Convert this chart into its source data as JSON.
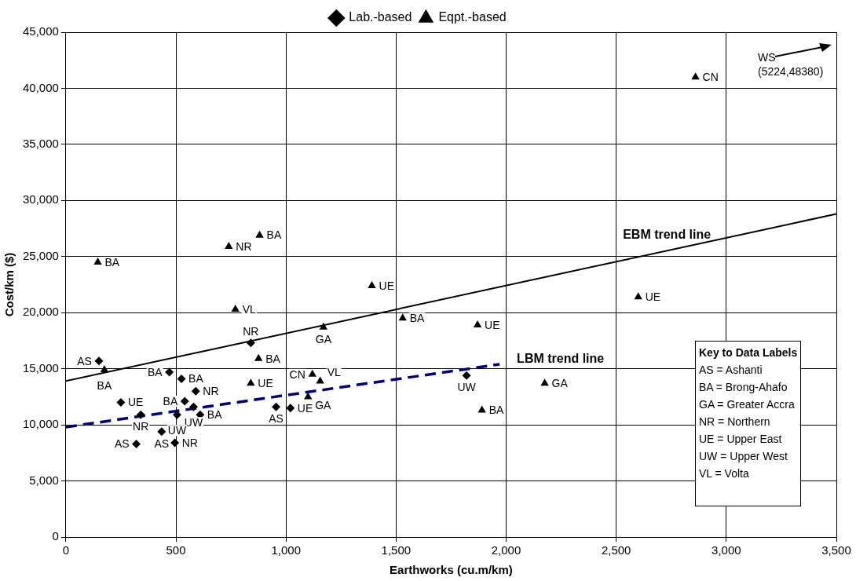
{
  "chart_data": {
    "type": "scatter",
    "xlabel": "Earthworks (cu.m/km)",
    "ylabel": "Cost/km ($)",
    "xlim": [
      0,
      3500
    ],
    "xticks": [
      0,
      {
        "value": 500,
        "label": "500"
      },
      {
        "value": 1000,
        "label": "1,000"
      },
      {
        "value": 1500,
        "label": "1,500"
      },
      {
        "value": 2000,
        "label": "2,000"
      },
      {
        "value": 2500,
        "label": "2,500"
      },
      {
        "value": 3000,
        "label": "3,000"
      },
      {
        "value": 3500,
        "label": "3,500"
      }
    ],
    "ylim": [
      0,
      45000
    ],
    "yticks": [
      0,
      {
        "value": 5000,
        "label": "5,000"
      },
      {
        "value": 10000,
        "label": "10,000"
      },
      {
        "value": 15000,
        "label": "15,000"
      },
      {
        "value": 20000,
        "label": "20,000"
      },
      {
        "value": 25000,
        "label": "25,000"
      },
      {
        "value": 30000,
        "label": "30,000"
      },
      {
        "value": 35000,
        "label": "35,000"
      },
      {
        "value": 40000,
        "label": "40,000"
      },
      {
        "value": 45000,
        "label": "45,000"
      }
    ],
    "grid": true,
    "legend": "top",
    "series": [
      {
        "name": "Lab.-based",
        "color": "#000000",
        "marker": "diamond",
        "x": [
          150,
          470,
          525,
          590,
          540,
          580,
          505,
          610,
          250,
          340,
          435,
          320,
          495,
          840,
          955,
          1020,
          1820
        ],
        "values": [
          15700,
          14700,
          14100,
          13000,
          12100,
          11600,
          10900,
          10900,
          12000,
          10900,
          9400,
          8300,
          8400,
          17300,
          11600,
          11500,
          14400
        ],
        "value_labels": [
          "AS",
          "BA",
          "BA",
          "NR",
          "BA",
          "UW",
          "UW",
          "BA",
          "UE",
          "NR",
          "AS",
          "AS",
          "NR",
          "NR",
          "AS",
          "UE",
          "UW"
        ]
      },
      {
        "name": "Eqpt.-based",
        "color": "#000000",
        "marker": "triangle",
        "x": [
          175,
          145,
          740,
          880,
          770,
          1390,
          1170,
          1530,
          1870,
          875,
          840,
          1120,
          1155,
          1100,
          1890,
          2175,
          2600,
          2860
        ],
        "values": [
          14900,
          24500,
          25900,
          26900,
          20300,
          22400,
          18700,
          19500,
          18900,
          15900,
          13700,
          14500,
          13900,
          12500,
          11300,
          13700,
          21400,
          41000
        ],
        "value_labels": [
          "BA",
          "BA",
          "NR",
          "BA",
          "VL",
          "UE",
          "GA",
          "BA",
          "UE",
          "BA",
          "UE",
          "CN",
          "VL",
          "GA",
          "BA",
          "GA",
          "UE",
          "CN"
        ]
      },
      {
        "name": "EBM trend line",
        "type": "line",
        "color": "#000000",
        "line_style": "solid",
        "marker": "none",
        "x": [
          0,
          3500
        ],
        "values": [
          13900,
          28800
        ]
      },
      {
        "name": "LBM trend line",
        "type": "line",
        "color": "#000080",
        "line_style": "dashed",
        "marker": "none",
        "x": [
          0,
          1970
        ],
        "values": [
          9800,
          15400
        ]
      }
    ],
    "annotations": [
      "WS",
      "(5224,48380)",
      "Key to Data Labels",
      "AS = Ashanti",
      "BA = Brong-Ahafo",
      "GA = Greater Accra",
      "NR = Northern",
      "UE = Upper East",
      "UW = Upper West",
      "VL = Volta"
    ]
  }
}
